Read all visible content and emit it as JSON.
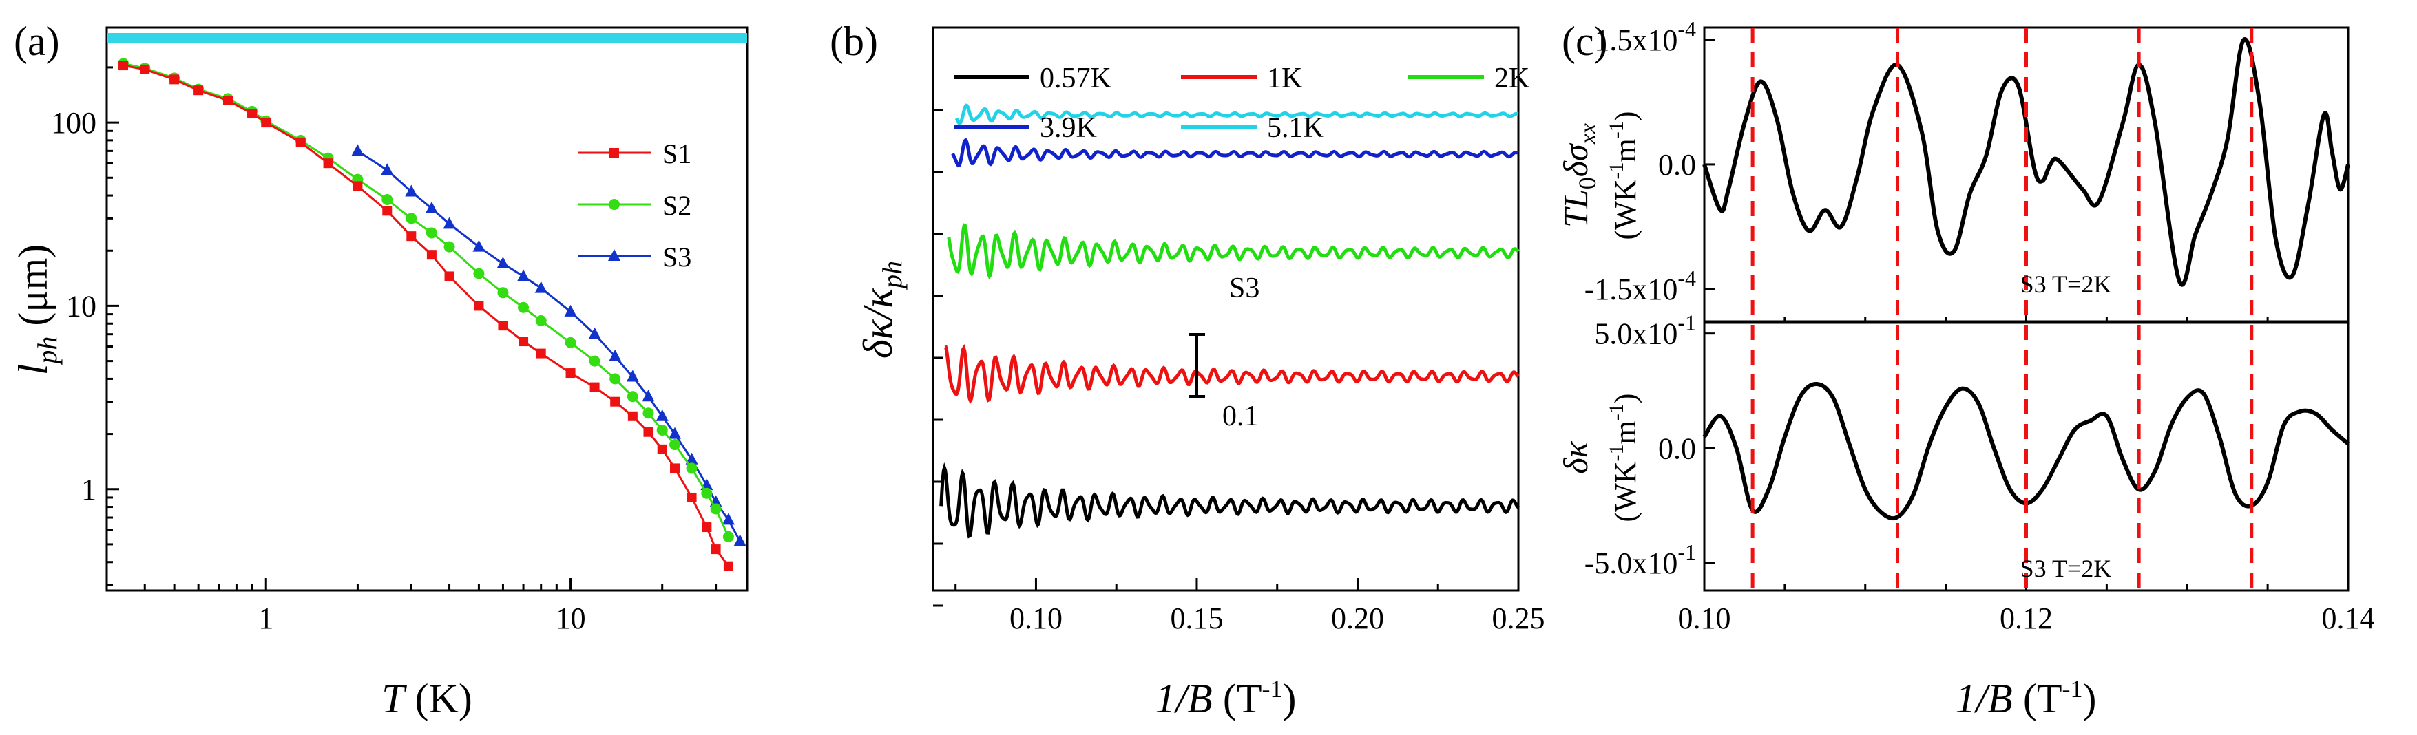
{
  "chart_data": [
    {
      "type": "scatter",
      "panel_label": "(a)",
      "xscale": "log",
      "yscale": "log",
      "xlim": [
        0.3,
        38
      ],
      "ylim": [
        0.28,
        330
      ],
      "xticks": [
        {
          "v": 1,
          "label": "1"
        },
        {
          "v": 10,
          "label": "10"
        }
      ],
      "yticks": [
        {
          "v": 1,
          "label": "1"
        },
        {
          "v": 10,
          "label": "10"
        },
        {
          "v": 100,
          "label": "100"
        }
      ],
      "xlabel": {
        "italic": "T",
        "rest": " (K)"
      },
      "ylabel": {
        "italic": "l",
        "sub": "ph",
        "rest": " (μm)"
      },
      "hline": {
        "y": 290,
        "color": "#33d6e6"
      },
      "legend_position": "right",
      "series": [
        {
          "name": "S1",
          "color": "#ee1111",
          "marker": "square",
          "x": [
            0.34,
            0.4,
            0.5,
            0.6,
            0.75,
            0.9,
            1.0,
            1.3,
            1.6,
            2.0,
            2.5,
            3.0,
            3.5,
            4.0,
            5.0,
            6.0,
            7.0,
            8.0,
            10.0,
            12.0,
            14.0,
            16.0,
            18.0,
            20.0,
            22.0,
            25.0,
            28.0,
            30.0,
            33.0
          ],
          "y": [
            205,
            195,
            172,
            150,
            132,
            112,
            100,
            78,
            60,
            45,
            33,
            24,
            19,
            14.5,
            10,
            7.8,
            6.4,
            5.5,
            4.3,
            3.6,
            3.0,
            2.5,
            2.05,
            1.65,
            1.3,
            0.9,
            0.62,
            0.47,
            0.38
          ]
        },
        {
          "name": "S2",
          "color": "#33dd11",
          "marker": "circle",
          "x": [
            0.34,
            0.4,
            0.5,
            0.6,
            0.75,
            0.9,
            1.0,
            1.3,
            1.6,
            2.0,
            2.5,
            3.0,
            3.5,
            4.0,
            5.0,
            6.0,
            7.0,
            8.0,
            10.0,
            12.0,
            14.0,
            16.0,
            18.0,
            20.0,
            22.0,
            25.0,
            28.0,
            30.0,
            33.0
          ],
          "y": [
            210,
            198,
            175,
            152,
            135,
            115,
            102,
            80,
            64,
            49,
            38,
            30,
            25,
            21,
            15,
            11.8,
            9.8,
            8.3,
            6.3,
            5.0,
            4.0,
            3.2,
            2.6,
            2.1,
            1.75,
            1.3,
            0.95,
            0.78,
            0.55
          ]
        },
        {
          "name": "S3",
          "color": "#1133cc",
          "marker": "triangle",
          "x": [
            2.0,
            2.5,
            3.0,
            3.5,
            4.0,
            5.0,
            6.0,
            7.0,
            8.0,
            10.0,
            12.0,
            14.0,
            16.0,
            18.0,
            20.0,
            22.0,
            25.0,
            28.0,
            30.0,
            33.0,
            36.0
          ],
          "y": [
            70,
            55,
            42,
            34,
            28,
            21,
            17,
            14.5,
            12.5,
            9.3,
            7.0,
            5.3,
            4.1,
            3.2,
            2.5,
            2.0,
            1.45,
            1.05,
            0.85,
            0.68,
            0.52
          ]
        }
      ]
    },
    {
      "type": "line",
      "panel_label": "(b)",
      "xlim": [
        0.068,
        0.25
      ],
      "ylim": [
        0,
        1
      ],
      "xticks": [
        0.1,
        0.15,
        0.2,
        0.25
      ],
      "xtick_labels": [
        "0.10",
        "0.15",
        "0.20",
        "0.25"
      ],
      "y_tick_marks": 9,
      "xlabel": {
        "italic": "1/B",
        "rest": " (T",
        "sup": "-1",
        "end": ")"
      },
      "ylabel": {
        "a": "δκ",
        "b": "/κ",
        "sub": "ph"
      },
      "annotation": "S3",
      "scale_bar_label": "0.1",
      "series": [
        {
          "name": "0.57K",
          "color": "#000000",
          "offset": 0.15,
          "amp": 0.075,
          "decay": 0.2
        },
        {
          "name": "1K",
          "color": "#ee1111",
          "offset": 0.38,
          "amp": 0.06,
          "decay": 0.22
        },
        {
          "name": "2K",
          "color": "#22dd11",
          "offset": 0.6,
          "amp": 0.055,
          "decay": 0.25
        },
        {
          "name": "3.9K",
          "color": "#1122cc",
          "offset": 0.775,
          "amp": 0.03,
          "decay": 0.12
        },
        {
          "name": "5.1K",
          "color": "#22d3e8",
          "offset": 0.845,
          "amp": 0.02,
          "decay": 0.1
        }
      ]
    },
    {
      "type": "line",
      "panel_label": "(c)",
      "xlim": [
        0.1,
        0.14
      ],
      "xticks": [
        0.1,
        0.12,
        0.14
      ],
      "xtick_labels": [
        "0.10",
        "0.12",
        "0.14"
      ],
      "xlabel": {
        "italic": "1/B",
        "rest": " (T",
        "sup": "-1",
        "end": ")"
      },
      "dashed_x": [
        0.103,
        0.112,
        0.12,
        0.127,
        0.134
      ],
      "dashed_color": "#ee1111",
      "top": {
        "ylabel": {
          "t": "TL",
          "s0": "0",
          "mid": "δσ",
          "sub": "xx"
        },
        "yunit": {
          "a": "(WK",
          "s1": "-1",
          "b": "m",
          "s2": "-1",
          "c": ")"
        },
        "ylim": [
          -1.9,
          1.65
        ],
        "yticks": [
          {
            "v": 1.5,
            "m": "1.5x10",
            "e": "-4"
          },
          {
            "v": 0.0,
            "m": "0.0",
            "e": ""
          },
          {
            "v": -1.5,
            "m": "-1.5x10",
            "e": "-4"
          }
        ],
        "annotation": "S3 T=2K",
        "x": [
          0.1,
          0.101,
          0.1015,
          0.1025,
          0.1035,
          0.1045,
          0.1055,
          0.1065,
          0.1075,
          0.1085,
          0.1095,
          0.1105,
          0.112,
          0.1135,
          0.1145,
          0.1155,
          0.1165,
          0.1175,
          0.1185,
          0.1195,
          0.1205,
          0.121,
          0.1215,
          0.122,
          0.1235,
          0.1245,
          0.126,
          0.127,
          0.128,
          0.1295,
          0.1305,
          0.1315,
          0.1325,
          0.1335,
          0.1345,
          0.1355,
          0.1365,
          0.1375,
          0.1385,
          0.139,
          0.1395,
          0.14
        ],
        "y": [
          0.0,
          -0.55,
          -0.3,
          0.5,
          1.0,
          0.55,
          -0.35,
          -0.8,
          -0.55,
          -0.75,
          -0.15,
          0.65,
          1.2,
          0.4,
          -0.8,
          -1.05,
          -0.35,
          0.1,
          0.9,
          0.95,
          -0.05,
          -0.2,
          0.0,
          0.05,
          -0.3,
          -0.45,
          0.5,
          1.2,
          0.5,
          -1.4,
          -0.85,
          -0.35,
          0.3,
          1.5,
          0.75,
          -0.9,
          -1.35,
          -0.5,
          0.6,
          0.15,
          -0.3,
          0.0
        ]
      },
      "bottom": {
        "ylabel": {
          "a": "δκ"
        },
        "yunit": {
          "a": "(WK",
          "s1": "-1",
          "b": "m",
          "s2": "-1",
          "c": ")"
        },
        "ylim": [
          -0.62,
          0.55
        ],
        "yticks": [
          {
            "v": 0.5,
            "m": "5.0x10",
            "e": "-1"
          },
          {
            "v": 0.0,
            "m": "0.0",
            "e": ""
          },
          {
            "v": -0.5,
            "m": "-5.0x10",
            "e": "-1"
          }
        ],
        "annotation": "S3 T=2K",
        "x": [
          0.1,
          0.101,
          0.102,
          0.103,
          0.104,
          0.105,
          0.106,
          0.107,
          0.108,
          0.109,
          0.11,
          0.111,
          0.112,
          0.113,
          0.114,
          0.115,
          0.116,
          0.117,
          0.118,
          0.119,
          0.12,
          0.121,
          0.122,
          0.123,
          0.124,
          0.125,
          0.126,
          0.127,
          0.128,
          0.129,
          0.13,
          0.131,
          0.132,
          0.133,
          0.134,
          0.135,
          0.136,
          0.137,
          0.138,
          0.139,
          0.14
        ],
        "y": [
          0.05,
          0.14,
          0.0,
          -0.27,
          -0.18,
          0.05,
          0.23,
          0.28,
          0.22,
          0.02,
          -0.18,
          -0.28,
          -0.3,
          -0.2,
          0.02,
          0.18,
          0.26,
          0.2,
          0.0,
          -0.18,
          -0.24,
          -0.18,
          -0.05,
          0.08,
          0.12,
          0.14,
          -0.05,
          -0.18,
          -0.1,
          0.1,
          0.22,
          0.24,
          0.05,
          -0.2,
          -0.25,
          -0.15,
          0.1,
          0.16,
          0.15,
          0.08,
          0.02
        ]
      }
    }
  ]
}
